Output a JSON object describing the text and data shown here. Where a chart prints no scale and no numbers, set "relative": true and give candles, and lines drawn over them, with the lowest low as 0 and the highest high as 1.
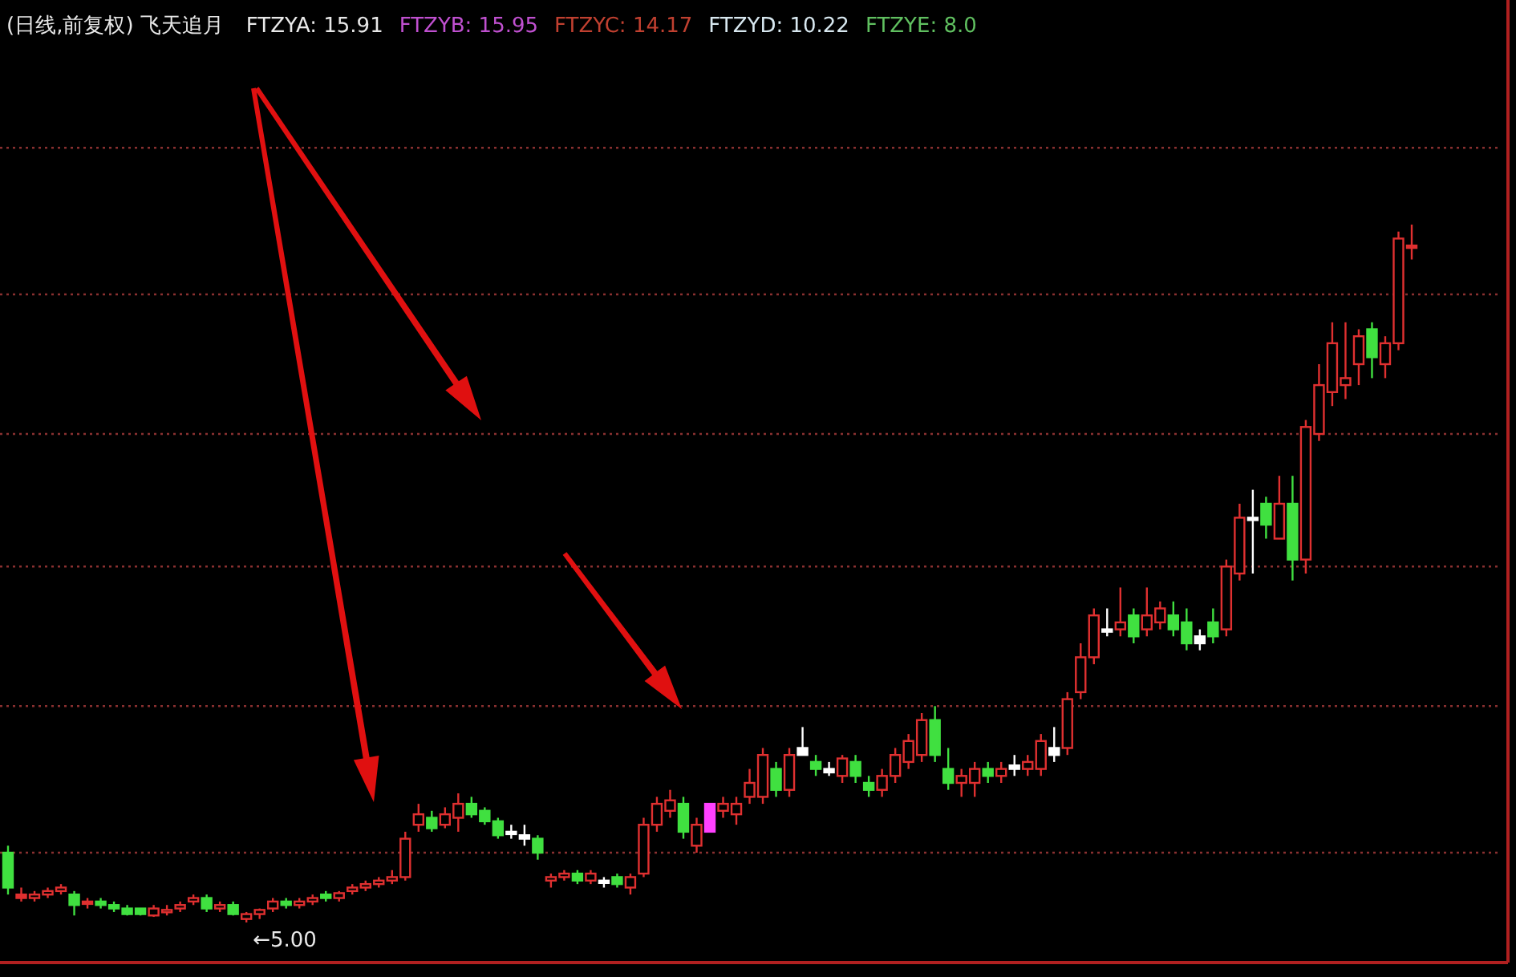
{
  "chart_data": {
    "type": "candlestick",
    "relative": true,
    "title": "(日线,前复权) 飞天追月",
    "annotations": [
      "FTZYA: 15.91",
      "FTZYB: 15.95",
      "FTZYC: 14.17",
      "FTZYD: 10.22",
      "FTZYE: 8.0",
      "←5.00"
    ],
    "ref_lines": [
      {
        "axis": "y",
        "value": 1.11,
        "color": "#8a3030",
        "line_style": "dotted"
      },
      {
        "axis": "y",
        "value": 0.9,
        "color": "#8a3030",
        "line_style": "dotted"
      },
      {
        "axis": "y",
        "value": 0.7,
        "color": "#8a3030",
        "line_style": "dotted"
      },
      {
        "axis": "y",
        "value": 0.51,
        "color": "#8a3030",
        "line_style": "dotted"
      },
      {
        "axis": "y",
        "value": 0.31,
        "color": "#8a3030",
        "line_style": "dotted"
      },
      {
        "axis": "y",
        "value": 0.1,
        "color": "#8a3030",
        "line_style": "dotted"
      }
    ],
    "categories": [
      null,
      null,
      null,
      null,
      null,
      null,
      null,
      null,
      null,
      null,
      null,
      null,
      null,
      null,
      null,
      null,
      null,
      null,
      null,
      null,
      null,
      null,
      null,
      null,
      null,
      null,
      null,
      null,
      null,
      null,
      null,
      null,
      null,
      null,
      null,
      null,
      null,
      null,
      null,
      null,
      null,
      null,
      null,
      null,
      null,
      null,
      null,
      null,
      null,
      null,
      null,
      null,
      null,
      null,
      null,
      null,
      null,
      null,
      null,
      null,
      null,
      null,
      null,
      null,
      null,
      null,
      null,
      null,
      null,
      null,
      null,
      null,
      null,
      null,
      null,
      null,
      null,
      null,
      null,
      null,
      null,
      null,
      null,
      null,
      null,
      null,
      null,
      null,
      null,
      null,
      null,
      null,
      null,
      null,
      null,
      null,
      null,
      null,
      null,
      null,
      null,
      null,
      null,
      null,
      null,
      null,
      null
    ],
    "ohlc": [
      [
        0.1,
        0.11,
        0.04,
        0.05
      ],
      [
        0.04,
        0.05,
        0.03,
        0.035
      ],
      [
        0.035,
        0.045,
        0.03,
        0.04
      ],
      [
        0.04,
        0.05,
        0.035,
        0.045
      ],
      [
        0.045,
        0.055,
        0.04,
        0.05
      ],
      [
        0.04,
        0.045,
        0.01,
        0.025
      ],
      [
        0.03,
        0.035,
        0.02,
        0.03
      ],
      [
        0.03,
        0.035,
        0.02,
        0.025
      ],
      [
        0.025,
        0.03,
        0.015,
        0.02
      ],
      [
        0.02,
        0.025,
        0.01,
        0.012
      ],
      [
        0.02,
        0.02,
        0.01,
        0.012
      ],
      [
        0.01,
        0.025,
        0.008,
        0.02
      ],
      [
        0.015,
        0.025,
        0.01,
        0.018
      ],
      [
        0.02,
        0.03,
        0.015,
        0.025
      ],
      [
        0.03,
        0.04,
        0.025,
        0.035
      ],
      [
        0.035,
        0.04,
        0.015,
        0.02
      ],
      [
        0.02,
        0.03,
        0.015,
        0.025
      ],
      [
        0.025,
        0.03,
        0.01,
        0.012
      ],
      [
        0.005,
        0.015,
        0.0,
        0.012
      ],
      [
        0.012,
        0.02,
        0.005,
        0.018
      ],
      [
        0.02,
        0.035,
        0.015,
        0.03
      ],
      [
        0.03,
        0.035,
        0.02,
        0.025
      ],
      [
        0.025,
        0.035,
        0.02,
        0.03
      ],
      [
        0.03,
        0.04,
        0.025,
        0.035
      ],
      [
        0.04,
        0.045,
        0.03,
        0.035
      ],
      [
        0.035,
        0.045,
        0.03,
        0.042
      ],
      [
        0.045,
        0.055,
        0.04,
        0.05
      ],
      [
        0.05,
        0.06,
        0.045,
        0.055
      ],
      [
        0.055,
        0.065,
        0.05,
        0.06
      ],
      [
        0.06,
        0.075,
        0.055,
        0.065
      ],
      [
        0.065,
        0.13,
        0.06,
        0.12
      ],
      [
        0.14,
        0.17,
        0.13,
        0.155
      ],
      [
        0.15,
        0.16,
        0.13,
        0.135
      ],
      [
        0.14,
        0.165,
        0.135,
        0.155
      ],
      [
        0.15,
        0.185,
        0.13,
        0.17
      ],
      [
        0.17,
        0.18,
        0.15,
        0.155
      ],
      [
        0.16,
        0.165,
        0.14,
        0.145
      ],
      [
        0.145,
        0.15,
        0.12,
        0.125
      ],
      [
        0.13,
        0.14,
        0.12,
        0.13
      ],
      [
        0.125,
        0.14,
        0.11,
        0.12
      ],
      [
        0.12,
        0.125,
        0.09,
        0.1
      ],
      [
        0.06,
        0.07,
        0.05,
        0.065
      ],
      [
        0.065,
        0.075,
        0.06,
        0.07
      ],
      [
        0.07,
        0.075,
        0.055,
        0.06
      ],
      [
        0.06,
        0.075,
        0.055,
        0.07
      ],
      [
        0.06,
        0.065,
        0.05,
        0.06
      ],
      [
        0.065,
        0.07,
        0.05,
        0.055
      ],
      [
        0.05,
        0.07,
        0.04,
        0.065
      ],
      [
        0.07,
        0.15,
        0.065,
        0.14
      ],
      [
        0.14,
        0.18,
        0.13,
        0.17
      ],
      [
        0.16,
        0.19,
        0.15,
        0.175
      ],
      [
        0.17,
        0.18,
        0.12,
        0.13
      ],
      [
        0.11,
        0.15,
        0.1,
        0.14
      ],
      [
        0.13,
        0.17,
        0.13,
        0.17
      ],
      [
        0.16,
        0.18,
        0.15,
        0.17
      ],
      [
        0.155,
        0.18,
        0.14,
        0.17
      ],
      [
        0.18,
        0.22,
        0.17,
        0.2
      ],
      [
        0.18,
        0.25,
        0.17,
        0.24
      ],
      [
        0.22,
        0.23,
        0.18,
        0.19
      ],
      [
        0.19,
        0.25,
        0.18,
        0.24
      ],
      [
        0.24,
        0.28,
        0.24,
        0.25
      ],
      [
        0.23,
        0.24,
        0.21,
        0.22
      ],
      [
        0.22,
        0.23,
        0.21,
        0.215
      ],
      [
        0.21,
        0.24,
        0.2,
        0.235
      ],
      [
        0.23,
        0.24,
        0.2,
        0.21
      ],
      [
        0.2,
        0.21,
        0.18,
        0.19
      ],
      [
        0.19,
        0.22,
        0.18,
        0.21
      ],
      [
        0.21,
        0.25,
        0.2,
        0.24
      ],
      [
        0.23,
        0.27,
        0.22,
        0.26
      ],
      [
        0.24,
        0.3,
        0.23,
        0.29
      ],
      [
        0.29,
        0.31,
        0.23,
        0.24
      ],
      [
        0.22,
        0.25,
        0.19,
        0.2
      ],
      [
        0.2,
        0.22,
        0.18,
        0.21
      ],
      [
        0.2,
        0.23,
        0.18,
        0.22
      ],
      [
        0.22,
        0.23,
        0.2,
        0.21
      ],
      [
        0.21,
        0.23,
        0.2,
        0.22
      ],
      [
        0.22,
        0.24,
        0.21,
        0.225
      ],
      [
        0.22,
        0.24,
        0.21,
        0.23
      ],
      [
        0.22,
        0.27,
        0.21,
        0.26
      ],
      [
        0.25,
        0.28,
        0.23,
        0.24
      ],
      [
        0.25,
        0.33,
        0.24,
        0.32
      ],
      [
        0.33,
        0.4,
        0.32,
        0.38
      ],
      [
        0.38,
        0.45,
        0.37,
        0.44
      ],
      [
        0.42,
        0.45,
        0.41,
        0.42
      ],
      [
        0.42,
        0.48,
        0.41,
        0.43
      ],
      [
        0.44,
        0.45,
        0.4,
        0.41
      ],
      [
        0.42,
        0.48,
        0.41,
        0.44
      ],
      [
        0.43,
        0.46,
        0.42,
        0.45
      ],
      [
        0.44,
        0.46,
        0.41,
        0.42
      ],
      [
        0.43,
        0.45,
        0.39,
        0.4
      ],
      [
        0.41,
        0.42,
        0.39,
        0.4
      ],
      [
        0.43,
        0.45,
        0.4,
        0.41
      ],
      [
        0.42,
        0.52,
        0.41,
        0.51
      ],
      [
        0.5,
        0.6,
        0.49,
        0.58
      ],
      [
        0.58,
        0.62,
        0.5,
        0.58
      ],
      [
        0.6,
        0.61,
        0.55,
        0.57
      ],
      [
        0.55,
        0.64,
        0.55,
        0.6
      ],
      [
        0.6,
        0.64,
        0.49,
        0.52
      ],
      [
        0.52,
        0.72,
        0.5,
        0.71
      ],
      [
        0.7,
        0.8,
        0.69,
        0.77
      ],
      [
        0.76,
        0.86,
        0.74,
        0.83
      ],
      [
        0.77,
        0.86,
        0.75,
        0.78
      ],
      [
        0.8,
        0.85,
        0.77,
        0.84
      ],
      [
        0.85,
        0.86,
        0.78,
        0.81
      ],
      [
        0.8,
        0.84,
        0.78,
        0.83
      ],
      [
        0.83,
        0.99,
        0.82,
        0.98
      ],
      [
        0.97,
        1.0,
        0.95,
        0.97
      ]
    ],
    "colors": [
      "#40e040",
      "#e03030",
      "#e03030",
      "#e03030",
      "#e03030",
      "#40e040",
      "#e03030",
      "#40e040",
      "#40e040",
      "#40e040",
      "#40e040",
      "#e03030",
      "#e03030",
      "#e03030",
      "#e03030",
      "#40e040",
      "#e03030",
      "#40e040",
      "#e03030",
      "#e03030",
      "#e03030",
      "#40e040",
      "#e03030",
      "#e03030",
      "#40e040",
      "#e03030",
      "#e03030",
      "#e03030",
      "#e03030",
      "#e03030",
      "#e03030",
      "#e03030",
      "#40e040",
      "#e03030",
      "#e03030",
      "#40e040",
      "#40e040",
      "#40e040",
      "#ffffff",
      "#ffffff",
      "#40e040",
      "#e03030",
      "#e03030",
      "#40e040",
      "#e03030",
      "#ffffff",
      "#40e040",
      "#e03030",
      "#e03030",
      "#e03030",
      "#e03030",
      "#40e040",
      "#e03030",
      "#ff40ff",
      "#e03030",
      "#e03030",
      "#e03030",
      "#e03030",
      "#40e040",
      "#e03030",
      "#ffffff",
      "#40e040",
      "#ffffff",
      "#e03030",
      "#40e040",
      "#40e040",
      "#e03030",
      "#e03030",
      "#e03030",
      "#e03030",
      "#40e040",
      "#40e040",
      "#e03030",
      "#e03030",
      "#40e040",
      "#e03030",
      "#ffffff",
      "#e03030",
      "#e03030",
      "#ffffff",
      "#e03030",
      "#e03030",
      "#e03030",
      "#ffffff",
      "#e03030",
      "#40e040",
      "#e03030",
      "#e03030",
      "#40e040",
      "#40e040",
      "#ffffff",
      "#40e040",
      "#e03030",
      "#e03030",
      "#ffffff",
      "#40e040",
      "#e03030",
      "#40e040",
      "#e03030",
      "#e03030",
      "#e03030",
      "#e03030",
      "#e03030",
      "#40e040",
      "#e03030",
      "#e03030",
      "#e03030"
    ]
  }
}
